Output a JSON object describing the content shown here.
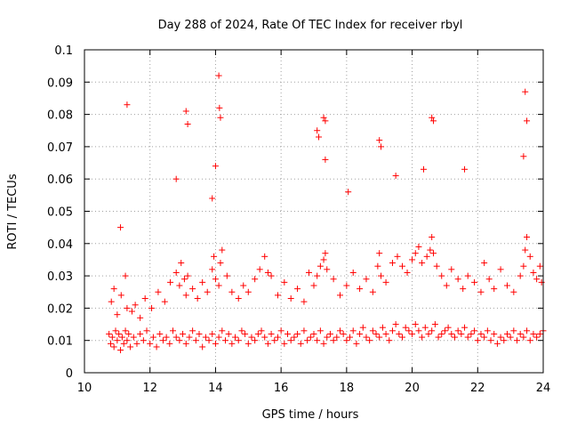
{
  "chart_data": {
    "type": "scatter",
    "title": "Day 288 of 2024, Rate Of TEC Index for receiver rbyl",
    "xlabel": "GPS time / hours",
    "ylabel": "ROTI / TECUs",
    "xlim": [
      10,
      24
    ],
    "ylim": [
      0,
      0.1
    ],
    "x_ticks": [
      10,
      12,
      14,
      16,
      18,
      20,
      22,
      24
    ],
    "y_ticks": [
      0,
      0.01,
      0.02,
      0.03,
      0.04,
      0.05,
      0.06,
      0.07,
      0.08,
      0.09,
      0.1
    ],
    "x_tick_labels": [
      "10",
      "12",
      "14",
      "16",
      "18",
      "20",
      "22",
      "24"
    ],
    "y_tick_labels": [
      "0",
      "0.01",
      "0.02",
      "0.03",
      "0.04",
      "0.05",
      "0.06",
      "0.07",
      "0.08",
      "0.09",
      "0.1"
    ],
    "grid": true,
    "marker": "+",
    "color": "#ff0000",
    "series": [
      {
        "name": "ROTI",
        "x": [
          10.75,
          10.8,
          10.85,
          10.9,
          10.95,
          11.0,
          11.05,
          11.1,
          11.15,
          11.2,
          11.25,
          11.3,
          11.35,
          11.4,
          11.5,
          11.6,
          11.7,
          11.8,
          11.9,
          12.0,
          12.1,
          12.2,
          12.3,
          12.4,
          12.5,
          12.6,
          12.7,
          12.8,
          12.9,
          13.0,
          13.1,
          13.2,
          13.3,
          13.4,
          13.5,
          13.6,
          13.7,
          13.8,
          13.9,
          14.0,
          14.1,
          14.2,
          14.3,
          14.4,
          14.5,
          14.6,
          14.7,
          14.8,
          14.9,
          15.0,
          15.1,
          15.2,
          15.3,
          15.4,
          15.5,
          15.6,
          15.7,
          15.8,
          15.9,
          16.0,
          16.1,
          16.2,
          16.3,
          16.4,
          16.5,
          16.6,
          16.7,
          16.8,
          16.9,
          17.0,
          17.1,
          17.2,
          17.3,
          17.4,
          17.5,
          17.6,
          17.7,
          17.8,
          17.9,
          18.0,
          18.1,
          18.2,
          18.3,
          18.4,
          18.5,
          18.6,
          18.7,
          18.8,
          18.9,
          19.0,
          19.1,
          19.2,
          19.3,
          19.4,
          19.5,
          19.6,
          19.7,
          19.8,
          19.9,
          20.0,
          20.1,
          20.2,
          20.3,
          20.4,
          20.5,
          20.6,
          20.7,
          20.8,
          20.9,
          21.0,
          21.1,
          21.2,
          21.3,
          21.4,
          21.5,
          21.6,
          21.7,
          21.8,
          21.9,
          22.0,
          22.1,
          22.2,
          22.3,
          22.4,
          22.5,
          22.6,
          22.7,
          22.8,
          22.9,
          23.0,
          23.1,
          23.2,
          23.3,
          23.4,
          23.5,
          23.6,
          23.7,
          23.8,
          23.9,
          24.0,
          10.82,
          10.9,
          11.0,
          11.12,
          11.25,
          11.3,
          11.45,
          11.55,
          11.7,
          11.85,
          12.05,
          12.25,
          12.45,
          12.62,
          12.8,
          12.9,
          12.95,
          13.05,
          13.1,
          13.15,
          13.3,
          13.45,
          13.6,
          13.75,
          13.9,
          13.95,
          14.0,
          14.1,
          14.15,
          14.2,
          14.35,
          14.5,
          14.7,
          14.85,
          15.0,
          15.2,
          15.35,
          15.5,
          15.6,
          15.7,
          15.9,
          16.1,
          16.3,
          16.5,
          16.7,
          16.85,
          17.0,
          17.1,
          17.2,
          17.3,
          17.35,
          17.4,
          17.6,
          17.8,
          18.0,
          18.2,
          18.4,
          18.6,
          18.8,
          18.95,
          19.0,
          19.05,
          19.2,
          19.4,
          19.55,
          19.7,
          19.85,
          20.0,
          20.1,
          20.2,
          20.3,
          20.45,
          20.55,
          20.6,
          20.65,
          20.75,
          20.9,
          21.05,
          21.2,
          21.4,
          21.55,
          21.7,
          21.9,
          22.1,
          22.2,
          22.35,
          22.5,
          22.7,
          22.9,
          23.1,
          23.3,
          23.4,
          23.45,
          23.5,
          23.6,
          23.7,
          23.8,
          23.9,
          23.95,
          11.1,
          11.3,
          13.1,
          13.15,
          14.1,
          14.12,
          14.15,
          17.3,
          17.35,
          17.1,
          17.15,
          19.0,
          19.05,
          20.6,
          20.65,
          23.45,
          23.5,
          23.4,
          12.8,
          20.35,
          21.6,
          19.5,
          13.9,
          14.0,
          18.05,
          17.35
        ],
        "y": [
          0.012,
          0.009,
          0.011,
          0.008,
          0.013,
          0.01,
          0.012,
          0.007,
          0.011,
          0.009,
          0.013,
          0.01,
          0.012,
          0.008,
          0.011,
          0.009,
          0.012,
          0.01,
          0.013,
          0.009,
          0.011,
          0.008,
          0.012,
          0.01,
          0.011,
          0.009,
          0.013,
          0.011,
          0.01,
          0.012,
          0.009,
          0.011,
          0.013,
          0.01,
          0.012,
          0.008,
          0.011,
          0.01,
          0.012,
          0.009,
          0.011,
          0.013,
          0.01,
          0.012,
          0.009,
          0.011,
          0.01,
          0.013,
          0.012,
          0.009,
          0.011,
          0.01,
          0.012,
          0.013,
          0.011,
          0.009,
          0.012,
          0.01,
          0.011,
          0.013,
          0.009,
          0.012,
          0.01,
          0.011,
          0.012,
          0.009,
          0.013,
          0.01,
          0.011,
          0.012,
          0.01,
          0.013,
          0.009,
          0.011,
          0.012,
          0.01,
          0.011,
          0.013,
          0.012,
          0.01,
          0.011,
          0.013,
          0.009,
          0.012,
          0.014,
          0.011,
          0.01,
          0.013,
          0.012,
          0.011,
          0.014,
          0.012,
          0.01,
          0.013,
          0.015,
          0.012,
          0.011,
          0.014,
          0.013,
          0.012,
          0.015,
          0.013,
          0.011,
          0.014,
          0.012,
          0.013,
          0.015,
          0.011,
          0.012,
          0.013,
          0.014,
          0.012,
          0.011,
          0.013,
          0.012,
          0.014,
          0.011,
          0.012,
          0.013,
          0.01,
          0.012,
          0.011,
          0.013,
          0.01,
          0.012,
          0.009,
          0.011,
          0.01,
          0.012,
          0.011,
          0.013,
          0.01,
          0.012,
          0.011,
          0.013,
          0.01,
          0.012,
          0.011,
          0.012,
          0.013,
          0.022,
          0.026,
          0.018,
          0.024,
          0.03,
          0.02,
          0.019,
          0.021,
          0.017,
          0.023,
          0.02,
          0.025,
          0.022,
          0.028,
          0.031,
          0.027,
          0.034,
          0.029,
          0.024,
          0.03,
          0.026,
          0.023,
          0.028,
          0.025,
          0.032,
          0.036,
          0.029,
          0.027,
          0.034,
          0.038,
          0.03,
          0.025,
          0.023,
          0.027,
          0.025,
          0.029,
          0.032,
          0.036,
          0.031,
          0.03,
          0.024,
          0.028,
          0.023,
          0.026,
          0.022,
          0.031,
          0.027,
          0.03,
          0.033,
          0.035,
          0.037,
          0.032,
          0.029,
          0.024,
          0.027,
          0.031,
          0.026,
          0.029,
          0.025,
          0.033,
          0.037,
          0.03,
          0.028,
          0.034,
          0.036,
          0.033,
          0.031,
          0.035,
          0.037,
          0.039,
          0.034,
          0.036,
          0.038,
          0.042,
          0.037,
          0.033,
          0.03,
          0.027,
          0.032,
          0.029,
          0.026,
          0.03,
          0.028,
          0.025,
          0.034,
          0.029,
          0.026,
          0.032,
          0.027,
          0.025,
          0.03,
          0.033,
          0.038,
          0.042,
          0.036,
          0.031,
          0.029,
          0.033,
          0.028,
          0.045,
          0.083,
          0.081,
          0.077,
          0.092,
          0.082,
          0.079,
          0.079,
          0.078,
          0.075,
          0.073,
          0.072,
          0.07,
          0.079,
          0.078,
          0.087,
          0.078,
          0.067,
          0.06,
          0.063,
          0.063,
          0.061,
          0.054,
          0.064,
          0.056,
          0.066
        ]
      }
    ]
  }
}
